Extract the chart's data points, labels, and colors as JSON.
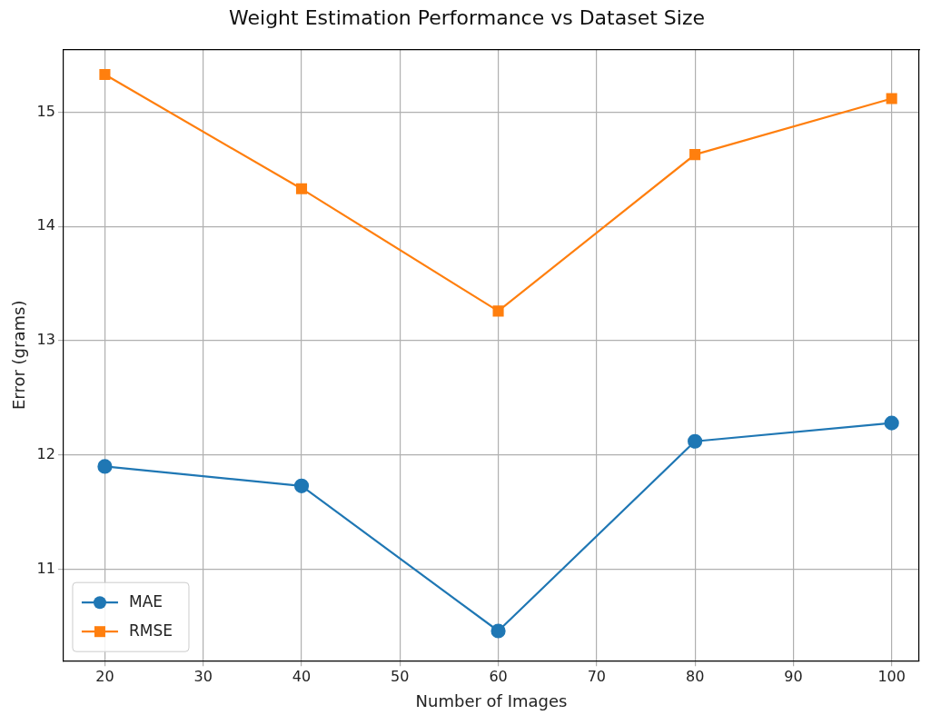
{
  "chart_data": {
    "type": "line",
    "title": "Weight Estimation Performance vs Dataset Size",
    "xlabel": "Number of Images",
    "ylabel": "Error (grams)",
    "x": [
      20,
      40,
      60,
      80,
      100
    ],
    "series": [
      {
        "name": "MAE",
        "color": "#1f77b4",
        "marker": "circle",
        "values": [
          11.9,
          11.73,
          10.46,
          12.12,
          12.28
        ]
      },
      {
        "name": "RMSE",
        "color": "#ff7f0e",
        "marker": "square",
        "values": [
          15.33,
          14.33,
          13.26,
          14.63,
          15.12
        ]
      }
    ],
    "xlim": [
      15.8,
      102.8
    ],
    "xticks": [
      20,
      30,
      40,
      50,
      60,
      70,
      80,
      90,
      100
    ],
    "ylim": [
      10.2,
      15.55
    ],
    "yticks": [
      11,
      12,
      13,
      14,
      15
    ],
    "grid": true,
    "legend": "bottom left",
    "line_style": "solid"
  }
}
